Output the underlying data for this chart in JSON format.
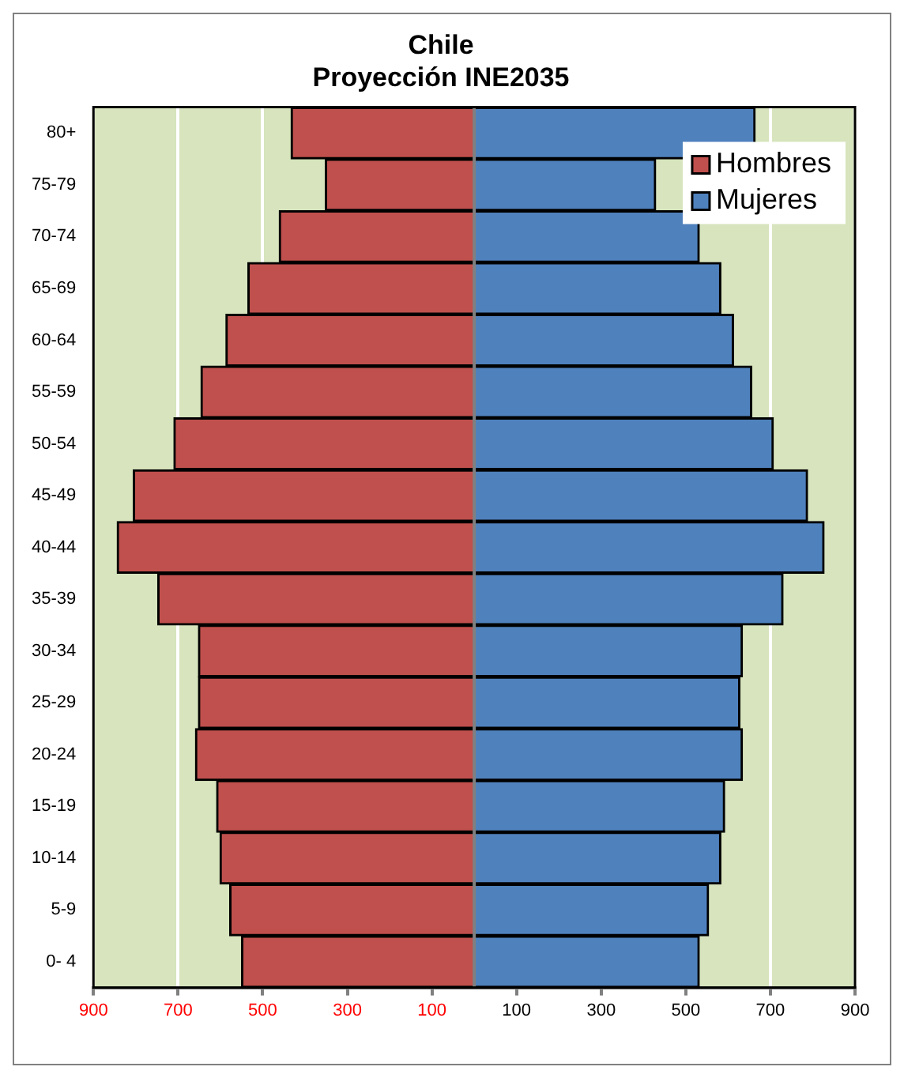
{
  "chart_data": {
    "type": "bar",
    "title": "Chile",
    "subtitle": "Proyección INE2035",
    "orientation": "horizontal",
    "stacked": true,
    "categories": [
      "80+",
      "75-79",
      "70-74",
      "65-69",
      "60-64",
      "55-59",
      "50-54",
      "45-49",
      "40-44",
      "35-39",
      "30-34",
      "25-29",
      "20-24",
      "15-19",
      "10-14",
      "5-9",
      "0- 4"
    ],
    "series": [
      {
        "name": "Hombres",
        "color": "#c0504d",
        "values": [
          -433,
          -352,
          -461,
          -535,
          -587,
          -646,
          -710,
          -806,
          -844,
          -748,
          -652,
          -652,
          -659,
          -609,
          -601,
          -578,
          -550
        ]
      },
      {
        "name": "Mujeres",
        "color": "#4f81bd",
        "values": [
          664,
          429,
          532,
          583,
          613,
          656,
          707,
          788,
          827,
          730,
          634,
          628,
          634,
          592,
          583,
          554,
          532
        ]
      }
    ],
    "xlim": [
      -900,
      900
    ],
    "xticks": [
      {
        "value": -900,
        "label": "900"
      },
      {
        "value": -700,
        "label": "700"
      },
      {
        "value": -500,
        "label": "500"
      },
      {
        "value": -300,
        "label": "300"
      },
      {
        "value": -100,
        "label": "100"
      },
      100,
      300,
      500,
      700,
      900
    ],
    "bands": [
      {
        "axis": "x",
        "from": -900,
        "to": 900,
        "color": "#d7e4bd"
      }
    ],
    "grid": "x",
    "legend": "top right"
  }
}
